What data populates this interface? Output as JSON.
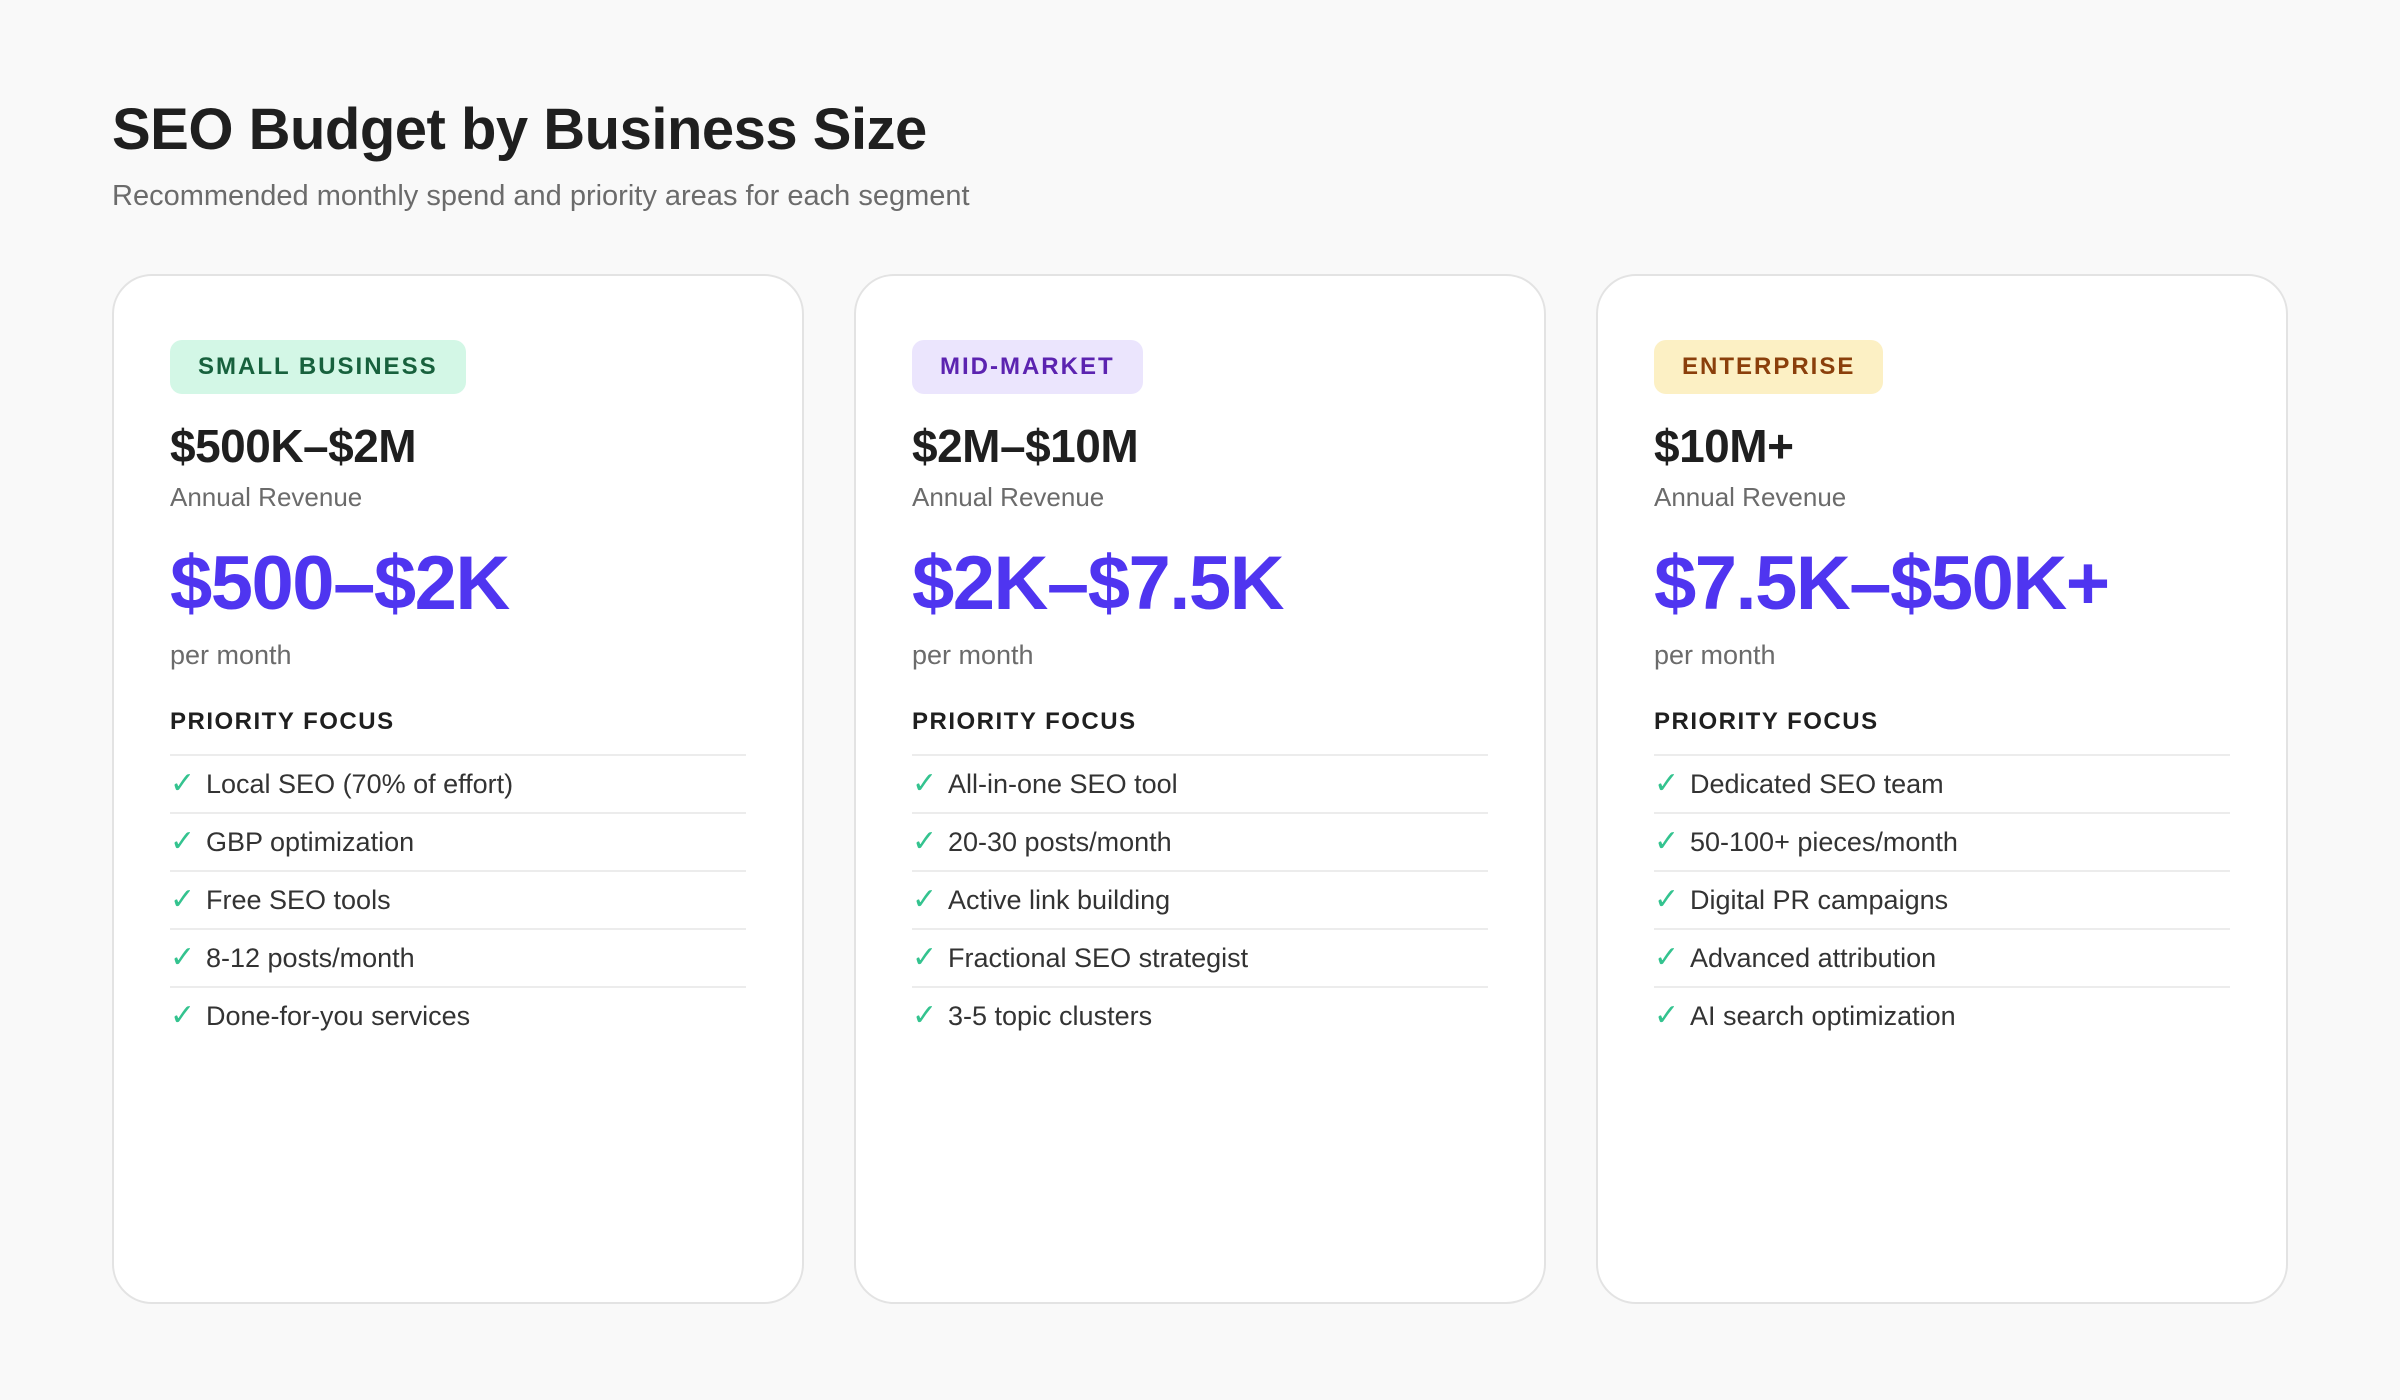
{
  "header": {
    "title": "SEO Budget by Business Size",
    "subtitle": "Recommended monthly spend and priority areas for each segment"
  },
  "colors": {
    "accent": "#4f35f0",
    "check": "#34c38f"
  },
  "cards": [
    {
      "badge": "SMALL BUSINESS",
      "badge_bg": "#d3f7e6",
      "badge_fg": "#17613d",
      "revenue": "$500K–$2M",
      "revenue_label": "Annual Revenue",
      "spend": "$500–$2K",
      "spend_unit": "per month",
      "focus_heading": "PRIORITY FOCUS",
      "items": [
        "Local SEO (70% of effort)",
        "GBP optimization",
        "Free SEO tools",
        "8-12 posts/month",
        "Done-for-you services"
      ]
    },
    {
      "badge": "MID-MARKET",
      "badge_bg": "#ebe5fd",
      "badge_fg": "#5b23b0",
      "revenue": "$2M–$10M",
      "revenue_label": "Annual Revenue",
      "spend": "$2K–$7.5K",
      "spend_unit": "per month",
      "focus_heading": "PRIORITY FOCUS",
      "items": [
        "All-in-one SEO tool",
        "20-30 posts/month",
        "Active link building",
        "Fractional SEO strategist",
        "3-5 topic clusters"
      ]
    },
    {
      "badge": "ENTERPRISE",
      "badge_bg": "#fcf0c4",
      "badge_fg": "#8a3f0b",
      "revenue": "$10M+",
      "revenue_label": "Annual Revenue",
      "spend": "$7.5K–$50K+",
      "spend_unit": "per month",
      "focus_heading": "PRIORITY FOCUS",
      "items": [
        "Dedicated SEO team",
        "50-100+ pieces/month",
        "Digital PR campaigns",
        "Advanced attribution",
        "AI search optimization"
      ]
    }
  ]
}
